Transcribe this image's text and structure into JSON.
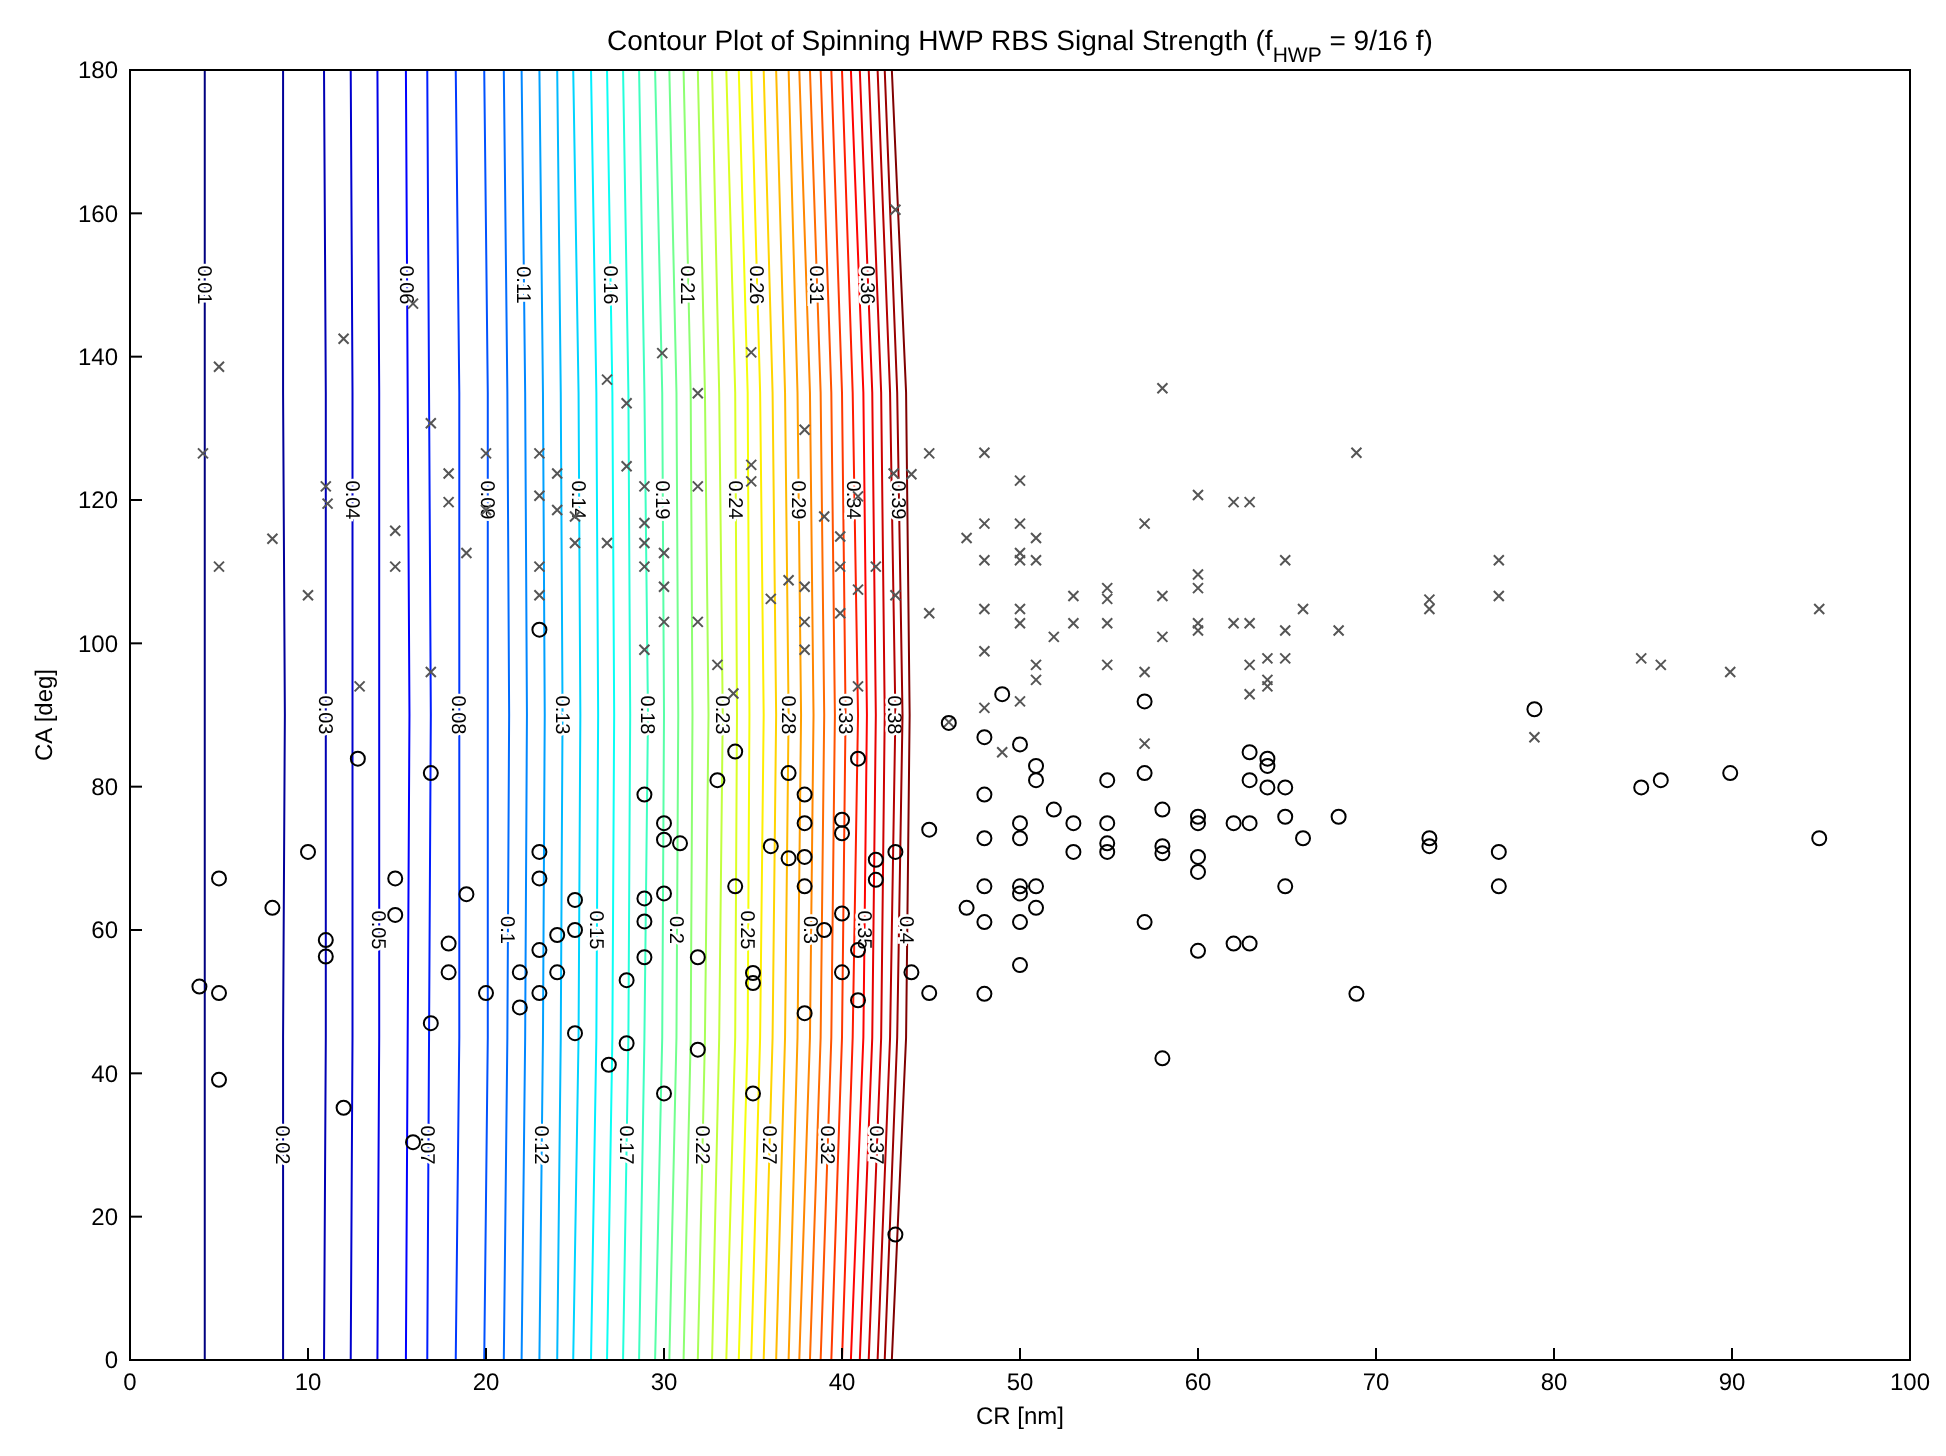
{
  "chart_data": {
    "type": "line",
    "title": "Contour Plot of Spinning HWP RBS Signal Strength (f$_{HWP}$ = 9/16 f)",
    "xlabel": "CR [nm]",
    "ylabel": "CA [deg]",
    "xlim": [
      0,
      100
    ],
    "xticks": [
      0,
      10,
      20,
      30,
      40,
      50,
      60,
      70,
      80,
      90,
      100
    ],
    "ylim": [
      0,
      180
    ],
    "yticks": [
      0,
      20,
      40,
      60,
      80,
      100,
      120,
      140,
      160,
      180
    ],
    "grid": false,
    "line_style": "solid",
    "series": [
      {
        "name": "0.01",
        "color": "#000080",
        "x": [
          4.2,
          4.2,
          4.2,
          4.2,
          4.2
        ],
        "values": [
          0,
          45,
          90,
          135,
          180
        ]
      },
      {
        "name": "0.02",
        "color": "#00009a",
        "x": [
          8.6,
          8.6,
          8.7,
          8.6,
          8.6
        ],
        "values": [
          0,
          45,
          90,
          135,
          180
        ]
      },
      {
        "name": "0.03",
        "color": "#0000b4",
        "x": [
          10.9,
          11.0,
          11.0,
          11.0,
          10.9
        ],
        "values": [
          0,
          45,
          90,
          135,
          180
        ]
      },
      {
        "name": "0.04",
        "color": "#0000ce",
        "x": [
          12.4,
          12.5,
          12.5,
          12.5,
          12.4
        ],
        "values": [
          0,
          45,
          90,
          135,
          180
        ]
      },
      {
        "name": "0.05",
        "color": "#0000e8",
        "x": [
          13.9,
          14.0,
          14.0,
          14.0,
          13.9
        ],
        "values": [
          0,
          45,
          90,
          135,
          180
        ]
      },
      {
        "name": "0.06",
        "color": "#0000ff",
        "x": [
          15.5,
          15.6,
          15.7,
          15.6,
          15.5
        ],
        "values": [
          0,
          45,
          90,
          135,
          180
        ]
      },
      {
        "name": "0.07",
        "color": "#001dff",
        "x": [
          16.7,
          16.8,
          16.9,
          16.8,
          16.7
        ],
        "values": [
          0,
          45,
          90,
          135,
          180
        ]
      },
      {
        "name": "0.08",
        "color": "#0038ff",
        "x": [
          18.3,
          18.5,
          18.5,
          18.5,
          18.3
        ],
        "values": [
          0,
          45,
          90,
          135,
          180
        ]
      },
      {
        "name": "0.09",
        "color": "#0052ff",
        "x": [
          19.9,
          20.1,
          20.1,
          20.1,
          19.9
        ],
        "values": [
          0,
          45,
          90,
          135,
          180
        ]
      },
      {
        "name": "0.1",
        "color": "#006cff",
        "x": [
          21.0,
          21.2,
          21.3,
          21.2,
          21.0
        ],
        "values": [
          0,
          45,
          90,
          135,
          180
        ]
      },
      {
        "name": "0.11",
        "color": "#0086ff",
        "x": [
          22.0,
          22.2,
          22.3,
          22.2,
          22.0
        ],
        "values": [
          0,
          45,
          90,
          135,
          180
        ]
      },
      {
        "name": "0.12",
        "color": "#00a0ff",
        "x": [
          23.0,
          23.2,
          23.3,
          23.2,
          23.0
        ],
        "values": [
          0,
          45,
          90,
          135,
          180
        ]
      },
      {
        "name": "0.13",
        "color": "#00baff",
        "x": [
          24.0,
          24.2,
          24.3,
          24.2,
          24.0
        ],
        "values": [
          0,
          45,
          90,
          135,
          180
        ]
      },
      {
        "name": "0.14",
        "color": "#00d4ff",
        "x": [
          24.9,
          25.2,
          25.3,
          25.2,
          24.9
        ],
        "values": [
          0,
          45,
          90,
          135,
          180
        ]
      },
      {
        "name": "0.15",
        "color": "#00eeff",
        "x": [
          25.9,
          26.2,
          26.3,
          26.2,
          25.9
        ],
        "values": [
          0,
          45,
          90,
          135,
          180
        ]
      },
      {
        "name": "0.16",
        "color": "#0afff5",
        "x": [
          26.8,
          27.1,
          27.2,
          27.1,
          26.8
        ],
        "values": [
          0,
          45,
          90,
          135,
          180
        ]
      },
      {
        "name": "0.17",
        "color": "#24ffdb",
        "x": [
          27.7,
          28.0,
          28.1,
          28.0,
          27.7
        ],
        "values": [
          0,
          45,
          90,
          135,
          180
        ]
      },
      {
        "name": "0.18",
        "color": "#3effc1",
        "x": [
          28.6,
          28.9,
          29.1,
          28.9,
          28.6
        ],
        "values": [
          0,
          45,
          90,
          135,
          180
        ]
      },
      {
        "name": "0.19",
        "color": "#58ffa7",
        "x": [
          29.5,
          29.9,
          30.0,
          29.9,
          29.5
        ],
        "values": [
          0,
          45,
          90,
          135,
          180
        ]
      },
      {
        "name": "0.2",
        "color": "#72ff8d",
        "x": [
          30.3,
          30.7,
          30.8,
          30.7,
          30.3
        ],
        "values": [
          0,
          45,
          90,
          135,
          180
        ]
      },
      {
        "name": "0.21",
        "color": "#8dff72",
        "x": [
          31.1,
          31.5,
          31.6,
          31.5,
          31.1
        ],
        "values": [
          0,
          45,
          90,
          135,
          180
        ]
      },
      {
        "name": "0.22",
        "color": "#a7ff58",
        "x": [
          31.9,
          32.3,
          32.5,
          32.3,
          31.9
        ],
        "values": [
          0,
          45,
          90,
          135,
          180
        ]
      },
      {
        "name": "0.23",
        "color": "#c1ff3e",
        "x": [
          32.7,
          33.1,
          33.3,
          33.1,
          32.7
        ],
        "values": [
          0,
          45,
          90,
          135,
          180
        ]
      },
      {
        "name": "0.24",
        "color": "#dbff24",
        "x": [
          33.5,
          34.0,
          34.1,
          34.0,
          33.5
        ],
        "values": [
          0,
          45,
          90,
          135,
          180
        ]
      },
      {
        "name": "0.25",
        "color": "#f5ff0a",
        "x": [
          34.2,
          34.7,
          34.8,
          34.7,
          34.2
        ],
        "values": [
          0,
          45,
          90,
          135,
          180
        ]
      },
      {
        "name": "0.26",
        "color": "#ffee00",
        "x": [
          34.9,
          35.4,
          35.6,
          35.4,
          34.9
        ],
        "values": [
          0,
          45,
          90,
          135,
          180
        ]
      },
      {
        "name": "0.27",
        "color": "#ffd400",
        "x": [
          35.6,
          36.1,
          36.3,
          36.1,
          35.6
        ],
        "values": [
          0,
          45,
          90,
          135,
          180
        ]
      },
      {
        "name": "0.28",
        "color": "#ffba00",
        "x": [
          36.3,
          36.8,
          37.0,
          36.8,
          36.3
        ],
        "values": [
          0,
          45,
          90,
          135,
          180
        ]
      },
      {
        "name": "0.29",
        "color": "#ffa000",
        "x": [
          37.0,
          37.5,
          37.7,
          37.5,
          37.0
        ],
        "values": [
          0,
          45,
          90,
          135,
          180
        ]
      },
      {
        "name": "0.3",
        "color": "#ff8600",
        "x": [
          37.6,
          38.2,
          38.4,
          38.2,
          37.6
        ],
        "values": [
          0,
          45,
          90,
          135,
          180
        ]
      },
      {
        "name": "0.31",
        "color": "#ff6c00",
        "x": [
          38.2,
          38.8,
          39.0,
          38.8,
          38.2
        ],
        "values": [
          0,
          45,
          90,
          135,
          180
        ]
      },
      {
        "name": "0.32",
        "color": "#ff5200",
        "x": [
          38.8,
          39.4,
          39.6,
          39.4,
          38.8
        ],
        "values": [
          0,
          45,
          90,
          135,
          180
        ]
      },
      {
        "name": "0.33",
        "color": "#ff3800",
        "x": [
          39.4,
          40.0,
          40.2,
          40.0,
          39.4
        ],
        "values": [
          0,
          45,
          90,
          135,
          180
        ]
      },
      {
        "name": "0.34",
        "color": "#ff1d00",
        "x": [
          40.0,
          40.6,
          40.9,
          40.6,
          40.0
        ],
        "values": [
          0,
          45,
          90,
          135,
          180
        ]
      },
      {
        "name": "0.35",
        "color": "#ff0300",
        "x": [
          40.5,
          41.2,
          41.4,
          41.2,
          40.5
        ],
        "values": [
          0,
          45,
          90,
          135,
          180
        ]
      },
      {
        "name": "0.36",
        "color": "#e80000",
        "x": [
          41.0,
          41.7,
          41.9,
          41.7,
          41.0
        ],
        "values": [
          0,
          45,
          90,
          135,
          180
        ]
      },
      {
        "name": "0.37",
        "color": "#ce0000",
        "x": [
          41.5,
          42.2,
          42.4,
          42.2,
          41.5
        ],
        "values": [
          0,
          45,
          90,
          135,
          180
        ]
      },
      {
        "name": "0.38",
        "color": "#b40000",
        "x": [
          42.0,
          42.7,
          43.0,
          42.7,
          42.0
        ],
        "values": [
          0,
          45,
          90,
          135,
          180
        ]
      },
      {
        "name": "0.39",
        "color": "#9a0000",
        "x": [
          42.4,
          43.1,
          43.4,
          43.1,
          42.4
        ],
        "values": [
          0,
          45,
          90,
          135,
          180
        ]
      },
      {
        "name": "0.4",
        "color": "#800000",
        "x": [
          42.8,
          43.6,
          43.8,
          43.6,
          42.8
        ],
        "values": [
          0,
          45,
          90,
          135,
          180
        ]
      },
      {
        "type": "scatter",
        "marker": "cross",
        "color": "#555555",
        "x": [
          5.0,
          4.1,
          5.0,
          8.0,
          10.0,
          11.0,
          11.1,
          12.0,
          12.9,
          14.9,
          14.9,
          15.9,
          16.9,
          16.9,
          17.9,
          17.9,
          18.9,
          20.0,
          20.0,
          23.0,
          23.0,
          23.0,
          23.0,
          24.0,
          24.0,
          25.0,
          25.0,
          26.8,
          27.9,
          27.9,
          26.8,
          28.9,
          28.9,
          28.9,
          28.9,
          28.9,
          29.9,
          30.0,
          30.0,
          30.0,
          31.9,
          31.9,
          31.9,
          33.0,
          33.9,
          34.9,
          34.9,
          34.9,
          36.0,
          37.0,
          37.9,
          37.9,
          37.9,
          37.9,
          39.0,
          39.9,
          39.9,
          39.9,
          40.9,
          40.9,
          41.9,
          43.0,
          43.0,
          44.9,
          44.9,
          42.9,
          40.9,
          58.0,
          48.0,
          43.9,
          50.0,
          48.0,
          50.0,
          47.0,
          50.9,
          48.0,
          50.0,
          50.0,
          50.9,
          57.0,
          60.0,
          62.0,
          62.9,
          68.9,
          64.9,
          60.0,
          60.0,
          53.0,
          54.9,
          54.9,
          58.0,
          48.0,
          50.0,
          50.0,
          53.0,
          54.9,
          60.0,
          60.0,
          62.0,
          62.9,
          65.9,
          64.9,
          67.9,
          73.0,
          73.0,
          76.9,
          76.9,
          94.9,
          51.9,
          58.0,
          48.0,
          50.9,
          50.9,
          54.9,
          57.0,
          62.9,
          63.9,
          64.9,
          62.9,
          63.9,
          63.9,
          84.9,
          86.0,
          89.9,
          48.0,
          50.0,
          78.9,
          57.0,
          49.0,
          46.0
        ],
        "values": [
          138.6,
          126.5,
          110.7,
          114.6,
          106.7,
          121.9,
          119.5,
          142.5,
          94.0,
          115.7,
          110.7,
          147.4,
          130.7,
          96.0,
          123.7,
          119.7,
          112.6,
          126.5,
          118.6,
          126.5,
          120.6,
          110.7,
          106.7,
          123.7,
          118.6,
          117.7,
          114.0,
          136.8,
          133.5,
          124.7,
          114.0,
          121.9,
          116.8,
          114.0,
          110.7,
          99.1,
          140.5,
          112.6,
          107.9,
          103.0,
          134.9,
          121.9,
          103.0,
          97.0,
          93.0,
          140.6,
          124.9,
          122.6,
          106.2,
          108.8,
          129.8,
          107.9,
          103.0,
          99.1,
          117.7,
          114.9,
          110.7,
          104.2,
          107.5,
          94.0,
          110.7,
          106.7,
          160.5,
          126.5,
          104.2,
          123.7,
          120.5,
          135.6,
          126.6,
          123.6,
          122.7,
          116.7,
          116.7,
          114.7,
          114.7,
          111.6,
          112.6,
          111.6,
          111.6,
          116.7,
          120.7,
          119.7,
          119.7,
          126.6,
          111.6,
          109.6,
          107.7,
          106.6,
          107.7,
          106.2,
          106.6,
          104.8,
          104.8,
          102.8,
          102.8,
          102.8,
          102.8,
          101.8,
          102.8,
          102.8,
          104.8,
          101.8,
          101.8,
          106.1,
          104.8,
          111.6,
          106.6,
          104.8,
          100.9,
          100.9,
          98.9,
          97.0,
          94.9,
          97.0,
          96.0,
          97.0,
          97.9,
          97.9,
          92.9,
          94.9,
          94.0,
          97.9,
          97.0,
          96.0,
          91.0,
          91.9,
          86.9,
          86.0,
          84.8,
          89.0
        ]
      },
      {
        "type": "scatter",
        "marker": "circle",
        "color": "#000000",
        "x": [
          12.8,
          16.9,
          10.0,
          5.0,
          8.0,
          14.9,
          14.9,
          18.9,
          11.0,
          11.0,
          17.9,
          17.9,
          20.0,
          3.9,
          5.0,
          16.9,
          5.0,
          12.0,
          15.9,
          23.0,
          23.0,
          24.0,
          23.0,
          21.9,
          23.0,
          21.9,
          23.0,
          34.0,
          33.0,
          28.9,
          30.0,
          30.9,
          30.0,
          30.0,
          28.9,
          28.9,
          25.0,
          25.0,
          24.0,
          28.9,
          31.9,
          34.0,
          27.9,
          27.9,
          25.0,
          26.9,
          30.0,
          31.9,
          35.0,
          35.0,
          35.0,
          37.0,
          37.9,
          37.9,
          37.9,
          37.9,
          37.0,
          36.0,
          39.0,
          37.9,
          40.0,
          40.0,
          40.9,
          40.9,
          40.0,
          40.9,
          40.0,
          41.9,
          41.9,
          43.0,
          43.9,
          44.9,
          44.9,
          43.0,
          49.0,
          57.0,
          78.9,
          48.0,
          50.0,
          50.9,
          50.9,
          54.9,
          57.0,
          62.9,
          63.9,
          63.9,
          62.9,
          63.9,
          64.9,
          84.9,
          86.0,
          89.9,
          48.0,
          48.0,
          50.0,
          50.0,
          51.9,
          53.0,
          53.0,
          54.9,
          54.9,
          54.9,
          58.0,
          58.0,
          58.0,
          60.0,
          60.0,
          60.0,
          60.0,
          62.0,
          62.9,
          64.9,
          65.9,
          67.9,
          73.0,
          73.0,
          76.9,
          76.9,
          94.9,
          48.0,
          50.0,
          50.0,
          50.9,
          50.9,
          47.0,
          48.0,
          50.0,
          57.0,
          64.9,
          60.0,
          62.0,
          62.9,
          50.0,
          48.0,
          68.9,
          58.0,
          46.0
        ],
        "values": [
          83.9,
          81.9,
          70.9,
          67.2,
          63.1,
          67.2,
          62.1,
          65.0,
          58.6,
          56.3,
          58.1,
          54.1,
          51.2,
          52.1,
          51.2,
          47.0,
          39.1,
          35.2,
          30.4,
          70.9,
          67.2,
          59.3,
          57.2,
          54.1,
          51.2,
          49.2,
          101.9,
          84.9,
          80.9,
          78.9,
          74.9,
          72.1,
          72.6,
          65.1,
          64.4,
          61.2,
          64.2,
          60.0,
          54.1,
          56.2,
          56.2,
          66.1,
          53.0,
          44.2,
          45.6,
          41.2,
          37.2,
          43.3,
          54.0,
          52.6,
          37.2,
          81.9,
          78.9,
          74.9,
          70.2,
          66.1,
          70.0,
          71.7,
          60.0,
          48.4,
          75.4,
          73.5,
          83.9,
          57.2,
          54.1,
          50.2,
          62.3,
          69.8,
          67.0,
          70.9,
          54.1,
          51.2,
          74.0,
          17.5,
          92.9,
          91.9,
          90.8,
          86.9,
          85.9,
          82.9,
          80.9,
          80.9,
          81.9,
          84.8,
          83.9,
          82.9,
          80.9,
          79.9,
          79.9,
          79.9,
          80.9,
          81.9,
          78.9,
          72.8,
          74.9,
          72.8,
          76.8,
          74.9,
          70.9,
          74.9,
          72.1,
          70.9,
          76.8,
          71.7,
          70.7,
          75.8,
          74.9,
          70.2,
          68.1,
          74.9,
          74.9,
          75.8,
          72.8,
          75.8,
          72.8,
          71.7,
          70.9,
          66.1,
          72.8,
          66.1,
          66.1,
          65.1,
          66.1,
          63.1,
          63.1,
          61.1,
          61.1,
          61.1,
          66.1,
          57.1,
          58.1,
          58.1,
          55.1,
          51.1,
          51.1,
          42.1,
          88.9
        ]
      }
    ]
  }
}
